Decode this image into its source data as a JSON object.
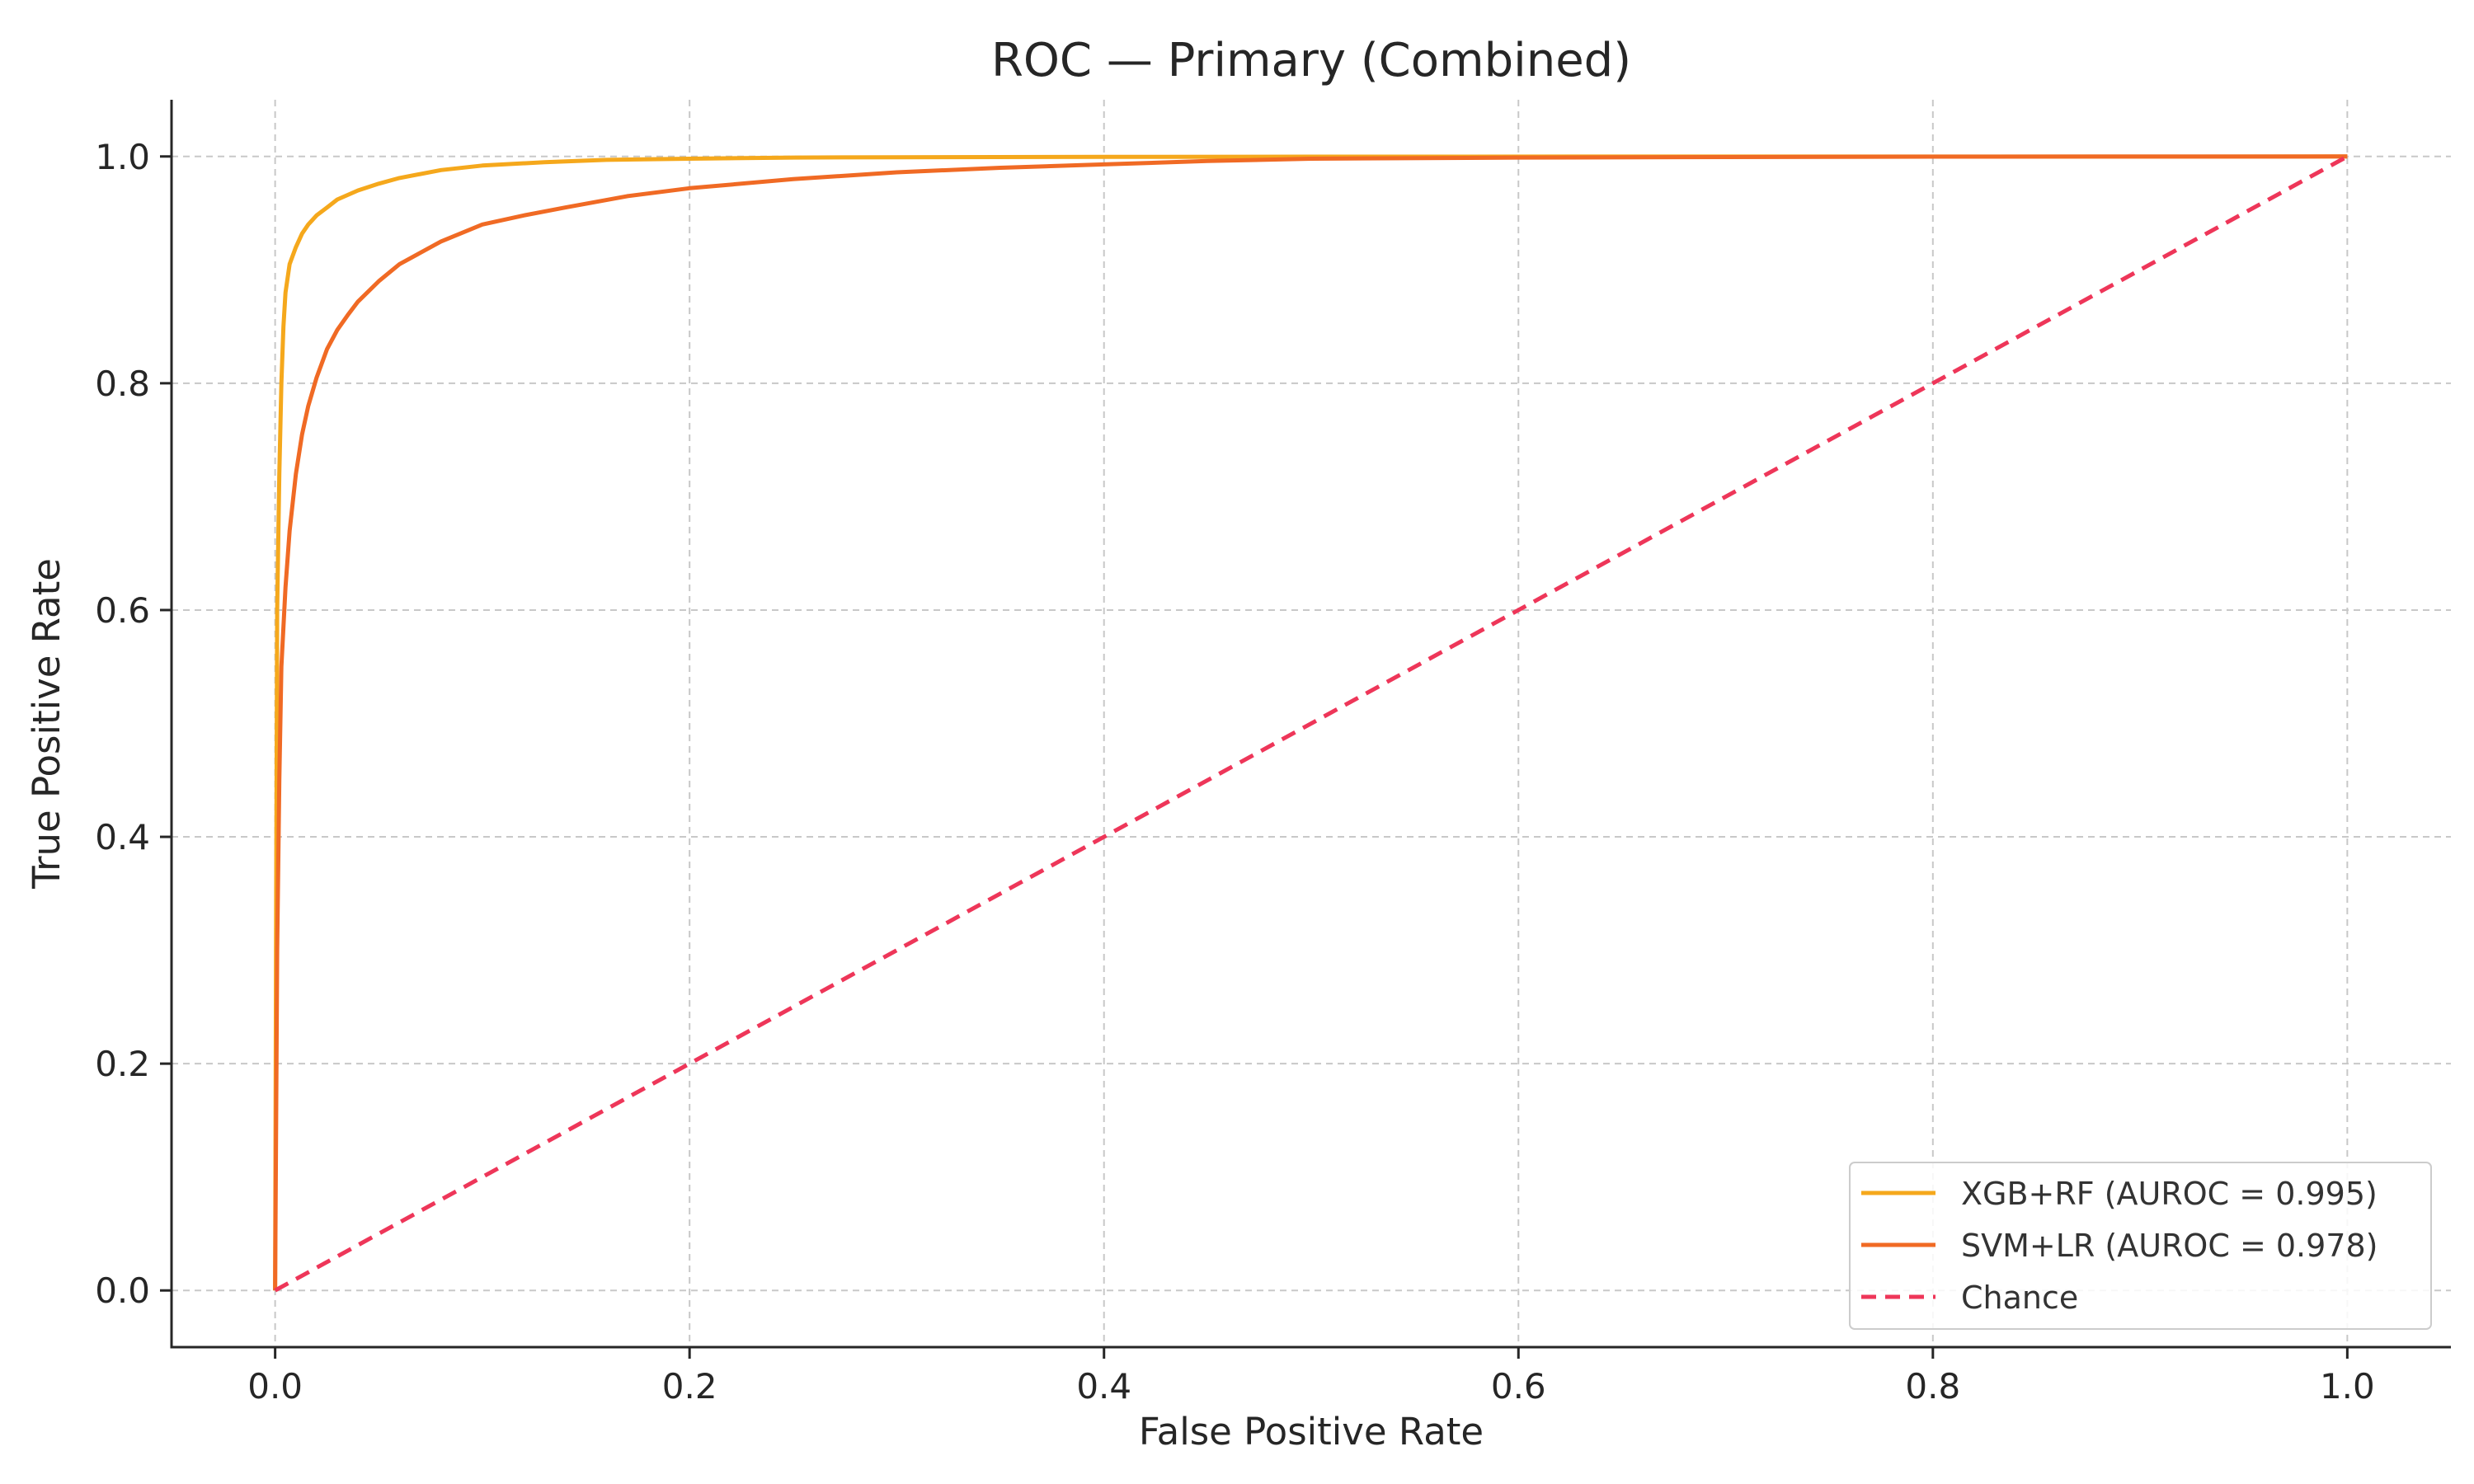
{
  "chart_data": {
    "type": "line",
    "title": "ROC — Primary (Combined)",
    "xlabel": "False Positive Rate",
    "ylabel": "True Positive Rate",
    "xlim": [
      -0.05,
      1.05
    ],
    "ylim": [
      -0.05,
      1.05
    ],
    "xticks": [
      "0.0",
      "0.2",
      "0.4",
      "0.6",
      "0.8",
      "1.0"
    ],
    "yticks": [
      "0.0",
      "0.2",
      "0.4",
      "0.6",
      "0.8",
      "1.0"
    ],
    "grid": true,
    "legend_position": "lower-right",
    "series": [
      {
        "name": "XGB+RF (AUROC = 0.995)",
        "color": "#F5A81C",
        "dash": "solid",
        "x": [
          0,
          0.0005,
          0.001,
          0.002,
          0.003,
          0.004,
          0.005,
          0.007,
          0.01,
          0.013,
          0.016,
          0.02,
          0.025,
          0.03,
          0.04,
          0.05,
          0.06,
          0.08,
          0.1,
          0.13,
          0.16,
          0.2,
          0.25,
          0.3,
          0.4,
          0.5,
          0.7,
          1.0
        ],
        "y": [
          0,
          0.35,
          0.6,
          0.72,
          0.8,
          0.85,
          0.88,
          0.905,
          0.92,
          0.932,
          0.94,
          0.948,
          0.955,
          0.962,
          0.97,
          0.976,
          0.981,
          0.988,
          0.992,
          0.995,
          0.997,
          0.998,
          0.999,
          0.9993,
          0.9996,
          0.9998,
          0.9999,
          1.0
        ]
      },
      {
        "name": "SVM+LR (AUROC = 0.978)",
        "color": "#F06A24",
        "dash": "solid",
        "x": [
          0,
          0.001,
          0.002,
          0.003,
          0.005,
          0.007,
          0.01,
          0.013,
          0.016,
          0.02,
          0.025,
          0.03,
          0.035,
          0.04,
          0.05,
          0.06,
          0.07,
          0.08,
          0.1,
          0.12,
          0.14,
          0.17,
          0.2,
          0.25,
          0.3,
          0.35,
          0.4,
          0.45,
          0.5,
          0.6,
          0.7,
          0.8,
          0.9,
          1.0
        ],
        "y": [
          0,
          0.3,
          0.45,
          0.55,
          0.62,
          0.67,
          0.72,
          0.755,
          0.78,
          0.805,
          0.83,
          0.847,
          0.86,
          0.872,
          0.89,
          0.905,
          0.915,
          0.925,
          0.94,
          0.948,
          0.955,
          0.965,
          0.972,
          0.98,
          0.986,
          0.99,
          0.993,
          0.996,
          0.998,
          0.999,
          0.9995,
          0.9998,
          0.9999,
          1.0
        ]
      },
      {
        "name": "Chance",
        "color": "#EE3659",
        "dash": "dashed",
        "x": [
          0,
          1
        ],
        "y": [
          0,
          1
        ]
      }
    ]
  }
}
